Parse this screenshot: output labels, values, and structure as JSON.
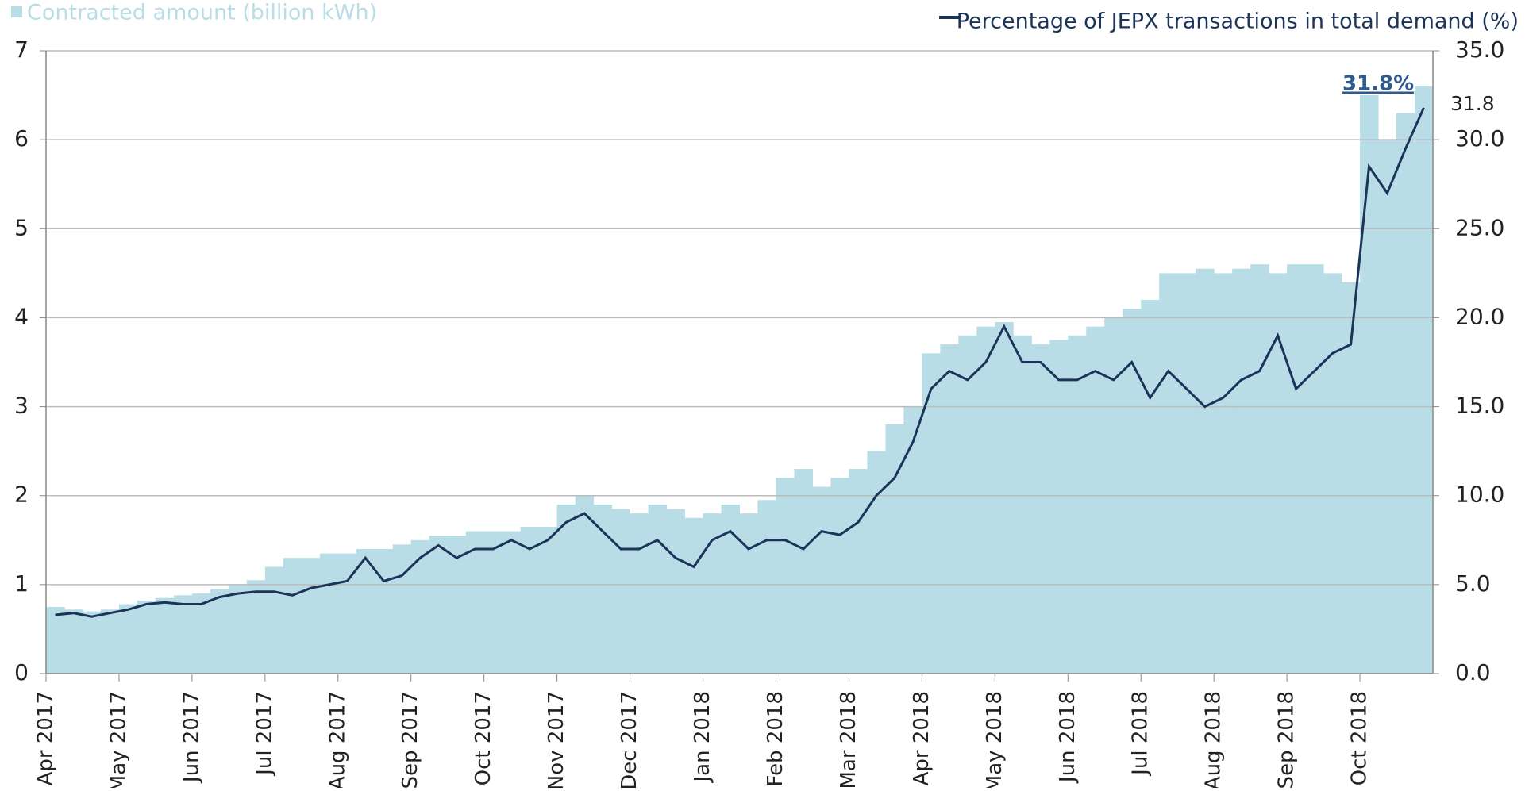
{
  "chart_data": {
    "type": "bar-line",
    "categories": [
      "Apr 2017",
      null,
      null,
      null,
      "May 2017",
      null,
      null,
      null,
      "Jun 2017",
      null,
      null,
      null,
      "Jul 2017",
      null,
      null,
      null,
      "Aug 2017",
      null,
      null,
      null,
      "Sep 2017",
      null,
      null,
      null,
      "Oct 2017",
      null,
      null,
      null,
      "Nov 2017",
      null,
      null,
      null,
      "Dec 2017",
      null,
      null,
      null,
      "Jan 2018",
      null,
      null,
      null,
      "Feb 2018",
      null,
      null,
      null,
      "Mar 2018",
      null,
      null,
      null,
      "Apr 2018",
      null,
      null,
      null,
      "May 2018",
      null,
      null,
      null,
      "Jun 2018",
      null,
      null,
      null,
      "Jul 2018",
      null,
      null,
      null,
      "Aug 2018",
      null,
      null,
      null,
      "Sep 2018",
      null,
      null,
      null,
      "Oct 2018",
      null,
      null,
      null
    ],
    "series": [
      {
        "name": "Contracted amount (billion kWh)",
        "color": "#b8dde6",
        "axis": "y",
        "values": [
          0.75,
          0.72,
          0.7,
          0.72,
          0.78,
          0.82,
          0.85,
          0.88,
          0.9,
          0.95,
          1.0,
          1.05,
          1.2,
          1.3,
          1.3,
          1.35,
          1.35,
          1.4,
          1.4,
          1.45,
          1.5,
          1.55,
          1.55,
          1.6,
          1.6,
          1.6,
          1.65,
          1.65,
          1.9,
          2.0,
          1.9,
          1.85,
          1.8,
          1.9,
          1.85,
          1.75,
          1.8,
          1.9,
          1.8,
          1.95,
          2.2,
          2.3,
          2.1,
          2.2,
          2.3,
          2.5,
          2.8,
          3.0,
          3.6,
          3.7,
          3.8,
          3.9,
          3.95,
          3.8,
          3.7,
          3.75,
          3.8,
          3.9,
          4.0,
          4.1,
          4.2,
          4.5,
          4.5,
          4.55,
          4.5,
          4.55,
          4.6,
          4.5,
          4.6,
          4.6,
          4.5,
          4.4,
          6.5,
          6.0,
          6.3,
          6.6
        ]
      },
      {
        "name": "Percentage of JEPX transactions in total demand (%)",
        "color": "#1b3458",
        "axis": "y2",
        "values": [
          3.3,
          3.4,
          3.2,
          3.4,
          3.6,
          3.9,
          4.0,
          3.9,
          3.9,
          4.3,
          4.5,
          4.6,
          4.6,
          4.4,
          4.8,
          5.0,
          5.2,
          6.5,
          5.2,
          5.5,
          6.5,
          7.2,
          6.5,
          7.0,
          7.0,
          7.5,
          7.0,
          7.5,
          8.5,
          9.0,
          8.0,
          7.0,
          7.0,
          7.5,
          6.5,
          6.0,
          7.5,
          8.0,
          7.0,
          7.5,
          7.5,
          7.0,
          8.0,
          7.8,
          8.5,
          10,
          11,
          13,
          16,
          17,
          16.5,
          17.5,
          19.5,
          17.5,
          17.5,
          16.5,
          16.5,
          17,
          16.5,
          17.5,
          15.5,
          17,
          16,
          15,
          15.5,
          16.5,
          17,
          19,
          16,
          17,
          18,
          18.5,
          28.5,
          27,
          29.5,
          31.8
        ]
      }
    ],
    "ylim": [
      0,
      7
    ],
    "yticks": [
      0,
      1,
      2,
      3,
      4,
      5,
      6,
      7
    ],
    "y2lim": [
      0,
      35
    ],
    "y2ticks": [
      {
        "value": 0,
        "label": "0.0"
      },
      {
        "value": 5,
        "label": "5.0"
      },
      {
        "value": 10,
        "label": "10.0"
      },
      {
        "value": 15,
        "label": "15.0"
      },
      {
        "value": 20,
        "label": "20.0"
      },
      {
        "value": 25,
        "label": "25.0"
      },
      {
        "value": 30,
        "label": "30.0"
      },
      {
        "value": 35,
        "label": "35.0"
      }
    ],
    "annotations": [
      "31.8%"
    ],
    "grid": true
  }
}
